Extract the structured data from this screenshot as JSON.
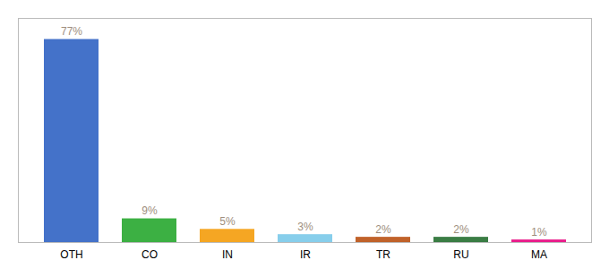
{
  "chart_data": {
    "type": "bar",
    "categories": [
      "OTH",
      "CO",
      "IN",
      "IR",
      "TR",
      "RU",
      "MA"
    ],
    "values": [
      77,
      9,
      5,
      3,
      2,
      2,
      1
    ],
    "value_labels": [
      "77%",
      "9%",
      "5%",
      "3%",
      "2%",
      "2%",
      "1%"
    ],
    "colors": [
      "#4472c9",
      "#3cb043",
      "#f5a623",
      "#87ceeb",
      "#c0622a",
      "#3a7d44",
      "#e91e8c"
    ],
    "ylim": [
      0,
      85
    ],
    "grid": false,
    "data_labels": true,
    "tick_labels": "x"
  }
}
